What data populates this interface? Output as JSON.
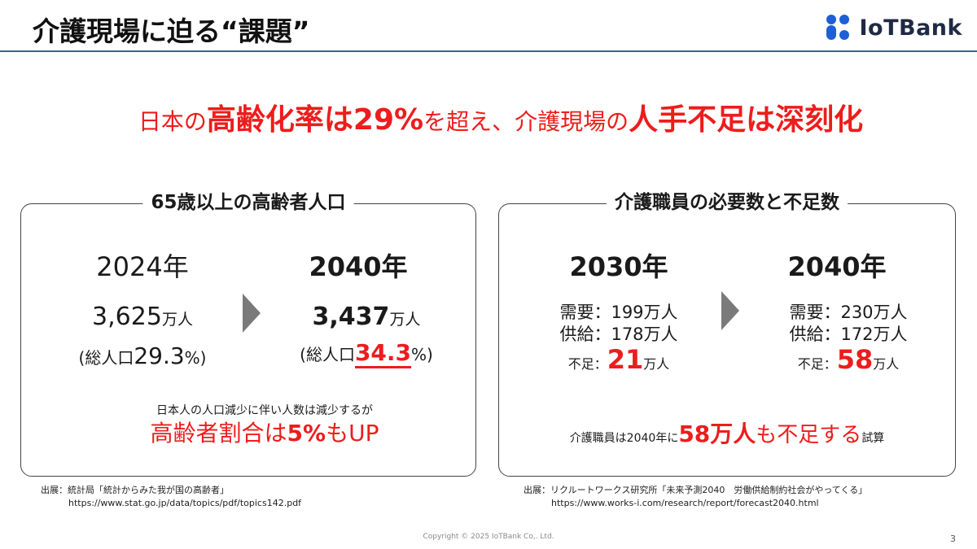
{
  "header": {
    "title": "介護現場に迫る“課題”",
    "logo_text": "IoTBank",
    "logo_icon": "iotbank-logo-mark",
    "rule_color": "#3b5fa0"
  },
  "headline": {
    "p1": "日本の",
    "p2": "高齢化率は29%",
    "p3": "を超え、介護現場の",
    "p4": "人手不足は深刻化",
    "color": "#ee1c1c"
  },
  "left_panel": {
    "title": "65歳以上の高齢者人口",
    "col1": {
      "year": "2024年",
      "value": "3,625",
      "unit": "万人",
      "ratio_prefix": "(総人口",
      "ratio_value": "29.3",
      "ratio_suffix": "%)"
    },
    "col2": {
      "year": "2040年",
      "value": "3,437",
      "unit": "万人",
      "ratio_prefix": "(総人口",
      "ratio_value": "34.3",
      "ratio_suffix": "%)"
    },
    "note": "日本人の人口減少に伴い人数は減少するが",
    "highlight_a": "高齢者割合は",
    "highlight_b": "5%",
    "highlight_c": "もUP",
    "arrow_icon": "chevron-right-icon"
  },
  "right_panel": {
    "title": "介護職員の必要数と不足数",
    "col1": {
      "year": "2030年",
      "demand": "需要：199万人",
      "supply": "供給：178万人",
      "short_label": "不足：",
      "short_value": "21",
      "short_unit": "万人"
    },
    "col2": {
      "year": "2040年",
      "demand": "需要：230万人",
      "supply": "供給：172万人",
      "short_label": "不足：",
      "short_value": "58",
      "short_unit": "万人"
    },
    "conclusion_a": "介護職員は2040年に",
    "conclusion_b": "58万人",
    "conclusion_c": "も不足する",
    "conclusion_d": "試算",
    "arrow_icon": "chevron-right-icon"
  },
  "sources": {
    "left_line1": "出展：統計局「統計からみた我が国の高齢者」",
    "left_line2": "https://www.stat.go.jp/data/topics/pdf/topics142.pdf",
    "right_line1": "出展：リクルートワークス研究所「未来予測2040　労働供給制約社会がやってくる」",
    "right_line2": "https://www.works-i.com/research/report/forecast2040.html"
  },
  "footer": {
    "copyright": "Copyright © 2025 IoTBank Co,. Ltd.",
    "page": "3"
  }
}
